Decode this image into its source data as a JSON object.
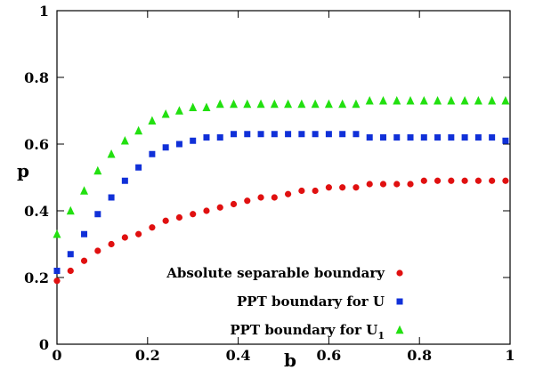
{
  "chart_data": {
    "type": "scatter",
    "title": "",
    "xlabel": "b",
    "ylabel": "p",
    "xlim": [
      0,
      1
    ],
    "ylim": [
      0,
      1
    ],
    "xticks": [
      "0",
      "0.2",
      "0.4",
      "0.6",
      "0.8",
      "1"
    ],
    "yticks": [
      "0",
      "0.2",
      "0.4",
      "0.6",
      "0.8",
      "1"
    ],
    "grid": false,
    "legend_position": "bottom-right",
    "x": [
      0,
      0.03,
      0.06,
      0.09,
      0.12,
      0.15,
      0.18,
      0.21,
      0.24,
      0.27,
      0.3,
      0.33,
      0.36,
      0.39,
      0.42,
      0.45,
      0.48,
      0.51,
      0.54,
      0.57,
      0.6,
      0.63,
      0.66,
      0.69,
      0.72,
      0.75,
      0.78,
      0.81,
      0.84,
      0.87,
      0.9,
      0.93,
      0.96,
      0.99
    ],
    "series": [
      {
        "name": "Absolute separable boundary",
        "marker": "circle",
        "color": "#e01010",
        "values": [
          0.19,
          0.22,
          0.25,
          0.28,
          0.3,
          0.32,
          0.33,
          0.35,
          0.37,
          0.38,
          0.39,
          0.4,
          0.41,
          0.42,
          0.43,
          0.44,
          0.44,
          0.45,
          0.46,
          0.46,
          0.47,
          0.47,
          0.47,
          0.48,
          0.48,
          0.48,
          0.48,
          0.49,
          0.49,
          0.49,
          0.49,
          0.49,
          0.49,
          0.49
        ]
      },
      {
        "name": "PPT boundary for U",
        "marker": "square",
        "color": "#1030d8",
        "values": [
          0.22,
          0.27,
          0.33,
          0.39,
          0.44,
          0.49,
          0.53,
          0.57,
          0.59,
          0.6,
          0.61,
          0.62,
          0.62,
          0.63,
          0.63,
          0.63,
          0.63,
          0.63,
          0.63,
          0.63,
          0.63,
          0.63,
          0.63,
          0.62,
          0.62,
          0.62,
          0.62,
          0.62,
          0.62,
          0.62,
          0.62,
          0.62,
          0.62,
          0.61
        ]
      },
      {
        "name": "PPT boundary for U",
        "name_subscript": "1",
        "marker": "triangle",
        "color": "#22e010",
        "values": [
          0.33,
          0.4,
          0.46,
          0.52,
          0.57,
          0.61,
          0.64,
          0.67,
          0.69,
          0.7,
          0.71,
          0.71,
          0.72,
          0.72,
          0.72,
          0.72,
          0.72,
          0.72,
          0.72,
          0.72,
          0.72,
          0.72,
          0.72,
          0.73,
          0.73,
          0.73,
          0.73,
          0.73,
          0.73,
          0.73,
          0.73,
          0.73,
          0.73,
          0.73
        ]
      }
    ]
  }
}
